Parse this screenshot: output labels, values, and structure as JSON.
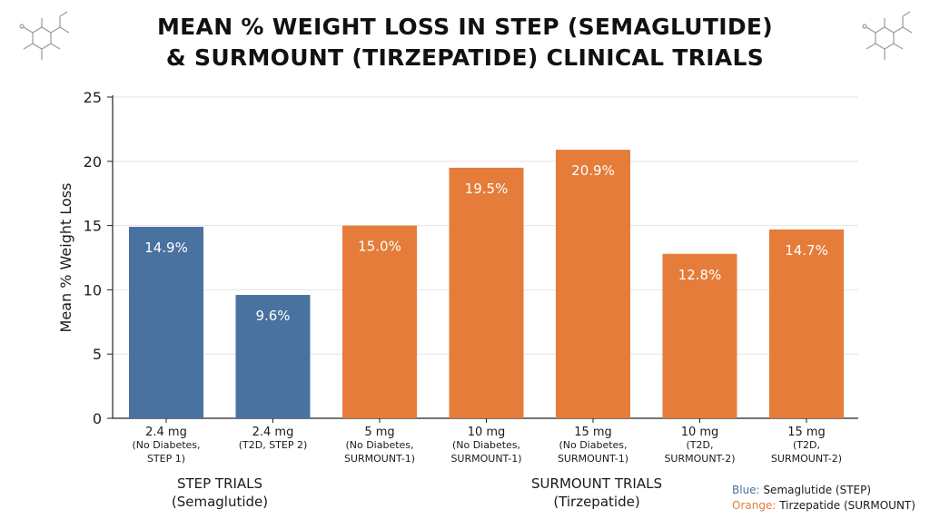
{
  "title": {
    "line1": "MEAN % WEIGHT LOSS IN STEP (SEMAGLUTIDE)",
    "line2": "& SURMOUNT (TIRZEPATIDE) CLINICAL TRIALS"
  },
  "colors": {
    "semaglutide": "#4a72a0",
    "tirzepatide": "#e57c3a",
    "grid": "#e4e4e4",
    "axis": "#222222"
  },
  "chart_data": {
    "type": "bar",
    "ylabel": "Mean % Weight Loss",
    "xlabel": "",
    "ylim": [
      0,
      25
    ],
    "yticks": [
      0,
      5,
      10,
      15,
      20,
      25
    ],
    "grid": true,
    "categories": [
      {
        "lines": [
          "2.4 mg",
          "(No Diabetes,",
          "STEP 1)"
        ],
        "value": 14.9,
        "label": "14.9%",
        "series": "semaglutide"
      },
      {
        "lines": [
          "2.4 mg",
          "(T2D, STEP 2)"
        ],
        "value": 9.6,
        "label": "9.6%",
        "series": "semaglutide"
      },
      {
        "lines": [
          "5 mg",
          "(No Diabetes,",
          "SURMOUNT-1)"
        ],
        "value": 15.0,
        "label": "15.0%",
        "series": "tirzepatide"
      },
      {
        "lines": [
          "10 mg",
          "(No Diabetes,",
          "SURMOUNT-1)"
        ],
        "value": 19.5,
        "label": "19.5%",
        "series": "tirzepatide"
      },
      {
        "lines": [
          "15 mg",
          "(No Diabetes,",
          "SURMOUNT-1)"
        ],
        "value": 20.9,
        "label": "20.9%",
        "series": "tirzepatide"
      },
      {
        "lines": [
          "10 mg",
          "(T2D,",
          "SURMOUNT-2)"
        ],
        "value": 12.8,
        "label": "12.8%",
        "series": "tirzepatide"
      },
      {
        "lines": [
          "15 mg",
          "(T2D,",
          "SURMOUNT-2)"
        ],
        "value": 14.7,
        "label": "14.7%",
        "series": "tirzepatide"
      }
    ],
    "groups": [
      {
        "line1": "STEP TRIALS",
        "line2": "(Semaglutide)"
      },
      {
        "line1": "SURMOUNT TRIALS",
        "line2": "(Tirzepatide)"
      }
    ],
    "legend": {
      "placement": "bottom-right",
      "entries": [
        {
          "color_word": "Blue:",
          "text": "Semaglutide (STEP)",
          "series": "semaglutide"
        },
        {
          "color_word": "Orange:",
          "text": "Tirzepatide (SURMOUNT)",
          "series": "tirzepatide"
        }
      ]
    }
  }
}
